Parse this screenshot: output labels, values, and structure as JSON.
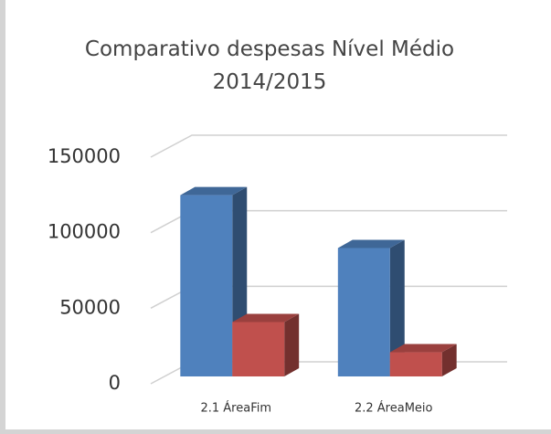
{
  "chart_data": {
    "type": "bar3d",
    "title": "Comparativo despesas Nível Médio 2014/2015",
    "categories": [
      "2.1 ÁreaFim",
      "2.2 ÁreaMeio"
    ],
    "series": [
      {
        "color": "#4f81bd",
        "values": [
          120000,
          85000
        ]
      },
      {
        "color": "#c0504d",
        "values": [
          36000,
          16000
        ]
      }
    ],
    "ylim": [
      0,
      150000
    ],
    "yticks": [
      0,
      50000,
      100000,
      150000
    ],
    "grid": true
  }
}
